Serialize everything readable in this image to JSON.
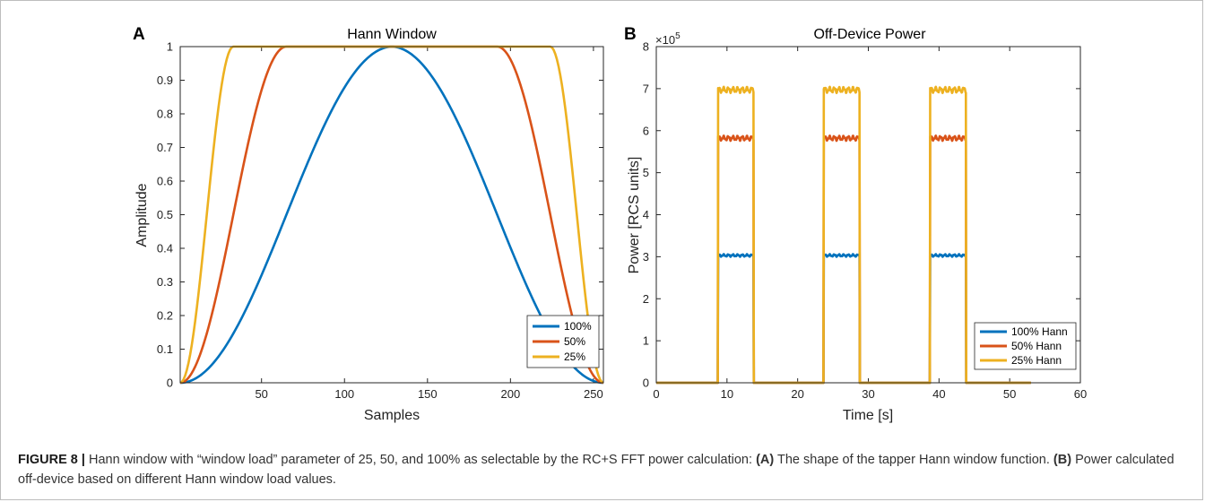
{
  "colors": {
    "series1": "#0072BD",
    "series2": "#D95319",
    "series3": "#EDB120",
    "axis": "#262626"
  },
  "chart_data": [
    {
      "panel": "A",
      "type": "line",
      "title": "Hann Window",
      "xlabel": "Samples",
      "ylabel": "Amplitude",
      "xlim": [
        1,
        256
      ],
      "ylim": [
        0,
        1
      ],
      "xticks": [
        50,
        100,
        150,
        200,
        250
      ],
      "yticks": [
        0,
        0.1,
        0.2,
        0.3,
        0.4,
        0.5,
        0.6,
        0.7,
        0.8,
        0.9,
        1
      ],
      "grid": false,
      "legend_position": "bottom-right",
      "series": [
        {
          "name": "100%",
          "x": [
            1,
            16,
            32,
            48,
            64,
            80,
            96,
            112,
            128,
            144,
            160,
            176,
            192,
            208,
            224,
            240,
            256
          ],
          "values": [
            0,
            0.04,
            0.15,
            0.31,
            0.5,
            0.69,
            0.85,
            0.96,
            1,
            0.96,
            0.85,
            0.69,
            0.5,
            0.31,
            0.15,
            0.04,
            0
          ]
        },
        {
          "name": "50%",
          "x": [
            1,
            9,
            17,
            25,
            33,
            41,
            49,
            57,
            64,
            100,
            150,
            193,
            200,
            208,
            216,
            224,
            232,
            240,
            248,
            256
          ],
          "values": [
            0,
            0.04,
            0.15,
            0.31,
            0.5,
            0.69,
            0.85,
            0.96,
            1,
            1,
            1,
            1,
            0.96,
            0.85,
            0.69,
            0.5,
            0.31,
            0.15,
            0.04,
            0
          ]
        },
        {
          "name": "25%",
          "x": [
            1,
            5,
            9,
            13,
            17,
            21,
            25,
            29,
            32,
            100,
            150,
            225,
            228,
            232,
            236,
            240,
            244,
            248,
            252,
            256
          ],
          "values": [
            0,
            0.04,
            0.15,
            0.31,
            0.5,
            0.69,
            0.85,
            0.96,
            1,
            1,
            1,
            1,
            0.96,
            0.85,
            0.69,
            0.5,
            0.31,
            0.15,
            0.04,
            0
          ]
        }
      ]
    },
    {
      "panel": "B",
      "type": "line",
      "title": "Off-Device Power",
      "xlabel": "Time [s]",
      "ylabel": "Power [RCS units]",
      "xlim": [
        0,
        60
      ],
      "ylim": [
        0,
        8
      ],
      "y_multiplier": "×10",
      "y_multiplier_exponent": "5",
      "xticks": [
        0,
        10,
        20,
        30,
        40,
        50,
        60
      ],
      "yticks": [
        0,
        1,
        2,
        3,
        4,
        5,
        6,
        7,
        8
      ],
      "grid": false,
      "legend_position": "bottom-right",
      "pulses": [
        [
          8.7,
          13.8
        ],
        [
          23.7,
          28.8
        ],
        [
          38.7,
          43.8
        ]
      ],
      "x_end": 53,
      "series": [
        {
          "name": "100% Hann",
          "level": 3.03
        },
        {
          "name": "50% Hann",
          "level": 5.82
        },
        {
          "name": "25% Hann",
          "level": 6.97
        }
      ]
    }
  ],
  "caption": {
    "label": "FIGURE 8 |",
    "text_before_a": "Hann window with “window load” parameter of 25, 50, and 100% as selectable by the RC+S FFT power calculation:",
    "a_label": "(A)",
    "a_text": "The shape of the tapper Hann window function.",
    "b_label": "(B)",
    "b_text": "Power calculated off-device based on different Hann window load values."
  }
}
